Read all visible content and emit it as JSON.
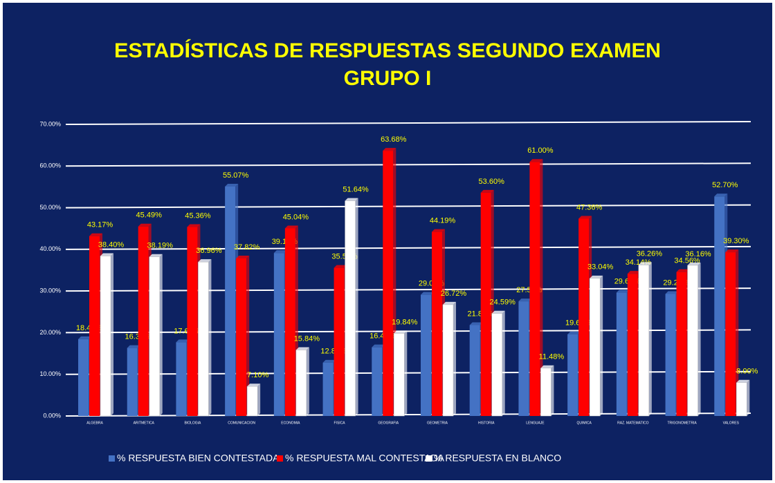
{
  "chart_data": {
    "type": "bar",
    "title": "ESTADÍSTICAS DE RESPUESTAS SEGUNDO EXAMEN",
    "subtitle": "GRUPO I",
    "categories": [
      "ALGEBRA",
      "ARITMETICA",
      "BIOLOGIA",
      "COMUNICACION",
      "ECONOMIA",
      "FISICA",
      "GEOGRAFIA",
      "GEOMETRIA",
      "HISTORIA",
      "LENGUAJE",
      "QUIMICA",
      "RAZ. MATEMATICO",
      "TRIGONOMETRIA",
      "VALORES"
    ],
    "series": [
      {
        "name": "% RESPUESTA BIEN CONTESTADA",
        "color": "#4472c4",
        "values": [
          18.43,
          16.32,
          17.68,
          55.07,
          39.12,
          12.8,
          16.48,
          29.09,
          21.81,
          27.52,
          19.6,
          29.6,
          29.28,
          52.7
        ],
        "value_labels": [
          "18.43%",
          "16.32%",
          "17.68%",
          "55.07%",
          "39.12%",
          "12.80%",
          "16.48%",
          "29.09%",
          "21.81%",
          "27.52%",
          "19.60%",
          "29.60%",
          "29.28%",
          "52.70%"
        ]
      },
      {
        "name": "% RESPUESTA MAL CONTESTADA",
        "color": "#ff0000",
        "values": [
          43.17,
          45.49,
          45.36,
          37.82,
          45.04,
          35.56,
          63.68,
          44.19,
          53.6,
          61.0,
          47.36,
          34.14,
          34.56,
          39.3
        ],
        "value_labels": [
          "43.17%",
          "45.49%",
          "45.36%",
          "37.82%",
          "45.04%",
          "35.56%",
          "63.68%",
          "44.19%",
          "53.60%",
          "61.00%",
          "47.36%",
          "34.14%",
          "34.56%",
          "39.30%"
        ]
      },
      {
        "name": "% RESPUESTA EN BLANCO",
        "color": "#ffffff",
        "values": [
          38.4,
          38.19,
          36.96,
          7.1,
          15.84,
          51.64,
          19.84,
          26.72,
          24.59,
          11.48,
          33.04,
          36.26,
          36.16,
          8.0
        ],
        "value_labels": [
          "38.40%",
          "38.19%",
          "36.96%",
          "7.10%",
          "15.84%",
          "51.64%",
          "19.84%",
          "26.72%",
          "24.59%",
          "11.48%",
          "33.04%",
          "36.26%",
          "36.16%",
          "8.00%"
        ]
      }
    ],
    "ylim": [
      0,
      70
    ],
    "yticks": [
      {
        "value": 0,
        "label": "0.00%"
      },
      {
        "value": 10,
        "label": "10.00%"
      },
      {
        "value": 20,
        "label": "20.00%"
      },
      {
        "value": 30,
        "label": "30.00%"
      },
      {
        "value": 40,
        "label": "40.00%"
      },
      {
        "value": 50,
        "label": "50.00%"
      },
      {
        "value": 60,
        "label": "60.00%"
      },
      {
        "value": 70,
        "label": "70.00%"
      }
    ],
    "grid": true,
    "legend": "bottom"
  }
}
